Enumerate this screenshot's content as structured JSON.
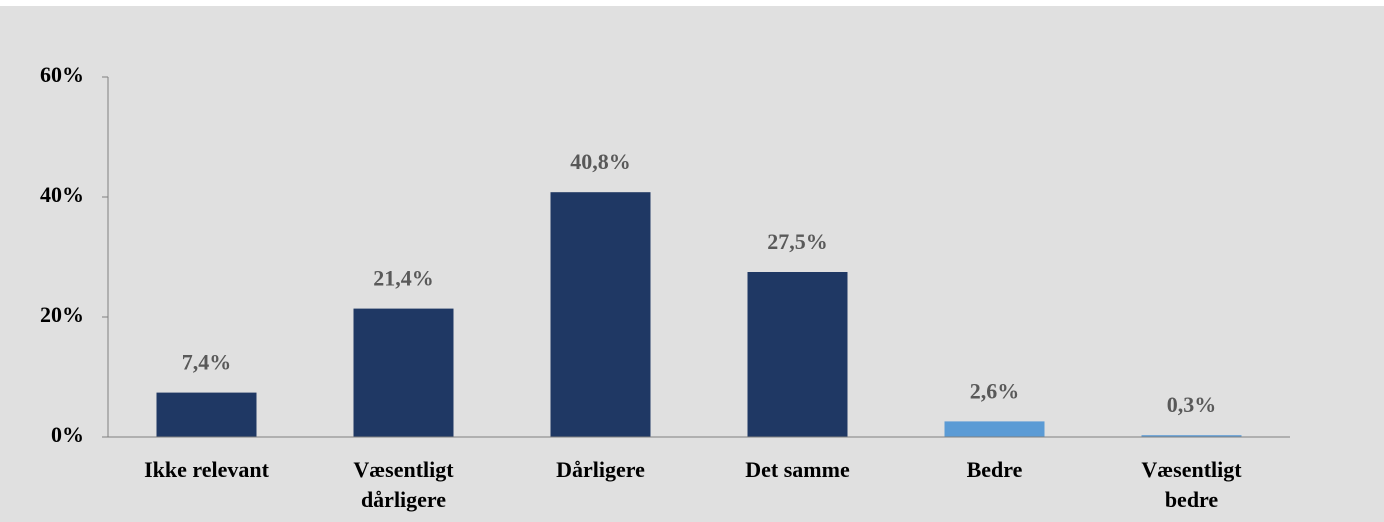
{
  "chart_data": {
    "type": "bar",
    "categories": [
      "Ikke relevant",
      "Væsentligt\ndårligere",
      "Dårligere",
      "Det samme",
      "Bedre",
      "Væsentligt\nbedre"
    ],
    "values": [
      7.4,
      21.4,
      40.8,
      27.5,
      2.6,
      0.3
    ],
    "value_labels": [
      "7,4%",
      "21,4%",
      "40,8%",
      "27,5%",
      "2,6%",
      "0,3%"
    ],
    "colors": [
      "#1f3864",
      "#1f3864",
      "#1f3864",
      "#1f3864",
      "#5b9bd5",
      "#5b9bd5"
    ],
    "ylim": [
      0,
      60
    ],
    "yticks": [
      {
        "value": 0,
        "label": "0%"
      },
      {
        "value": 20,
        "label": "20%"
      },
      {
        "value": 40,
        "label": "40%"
      },
      {
        "value": 60,
        "label": "60%"
      }
    ],
    "grid": false
  }
}
